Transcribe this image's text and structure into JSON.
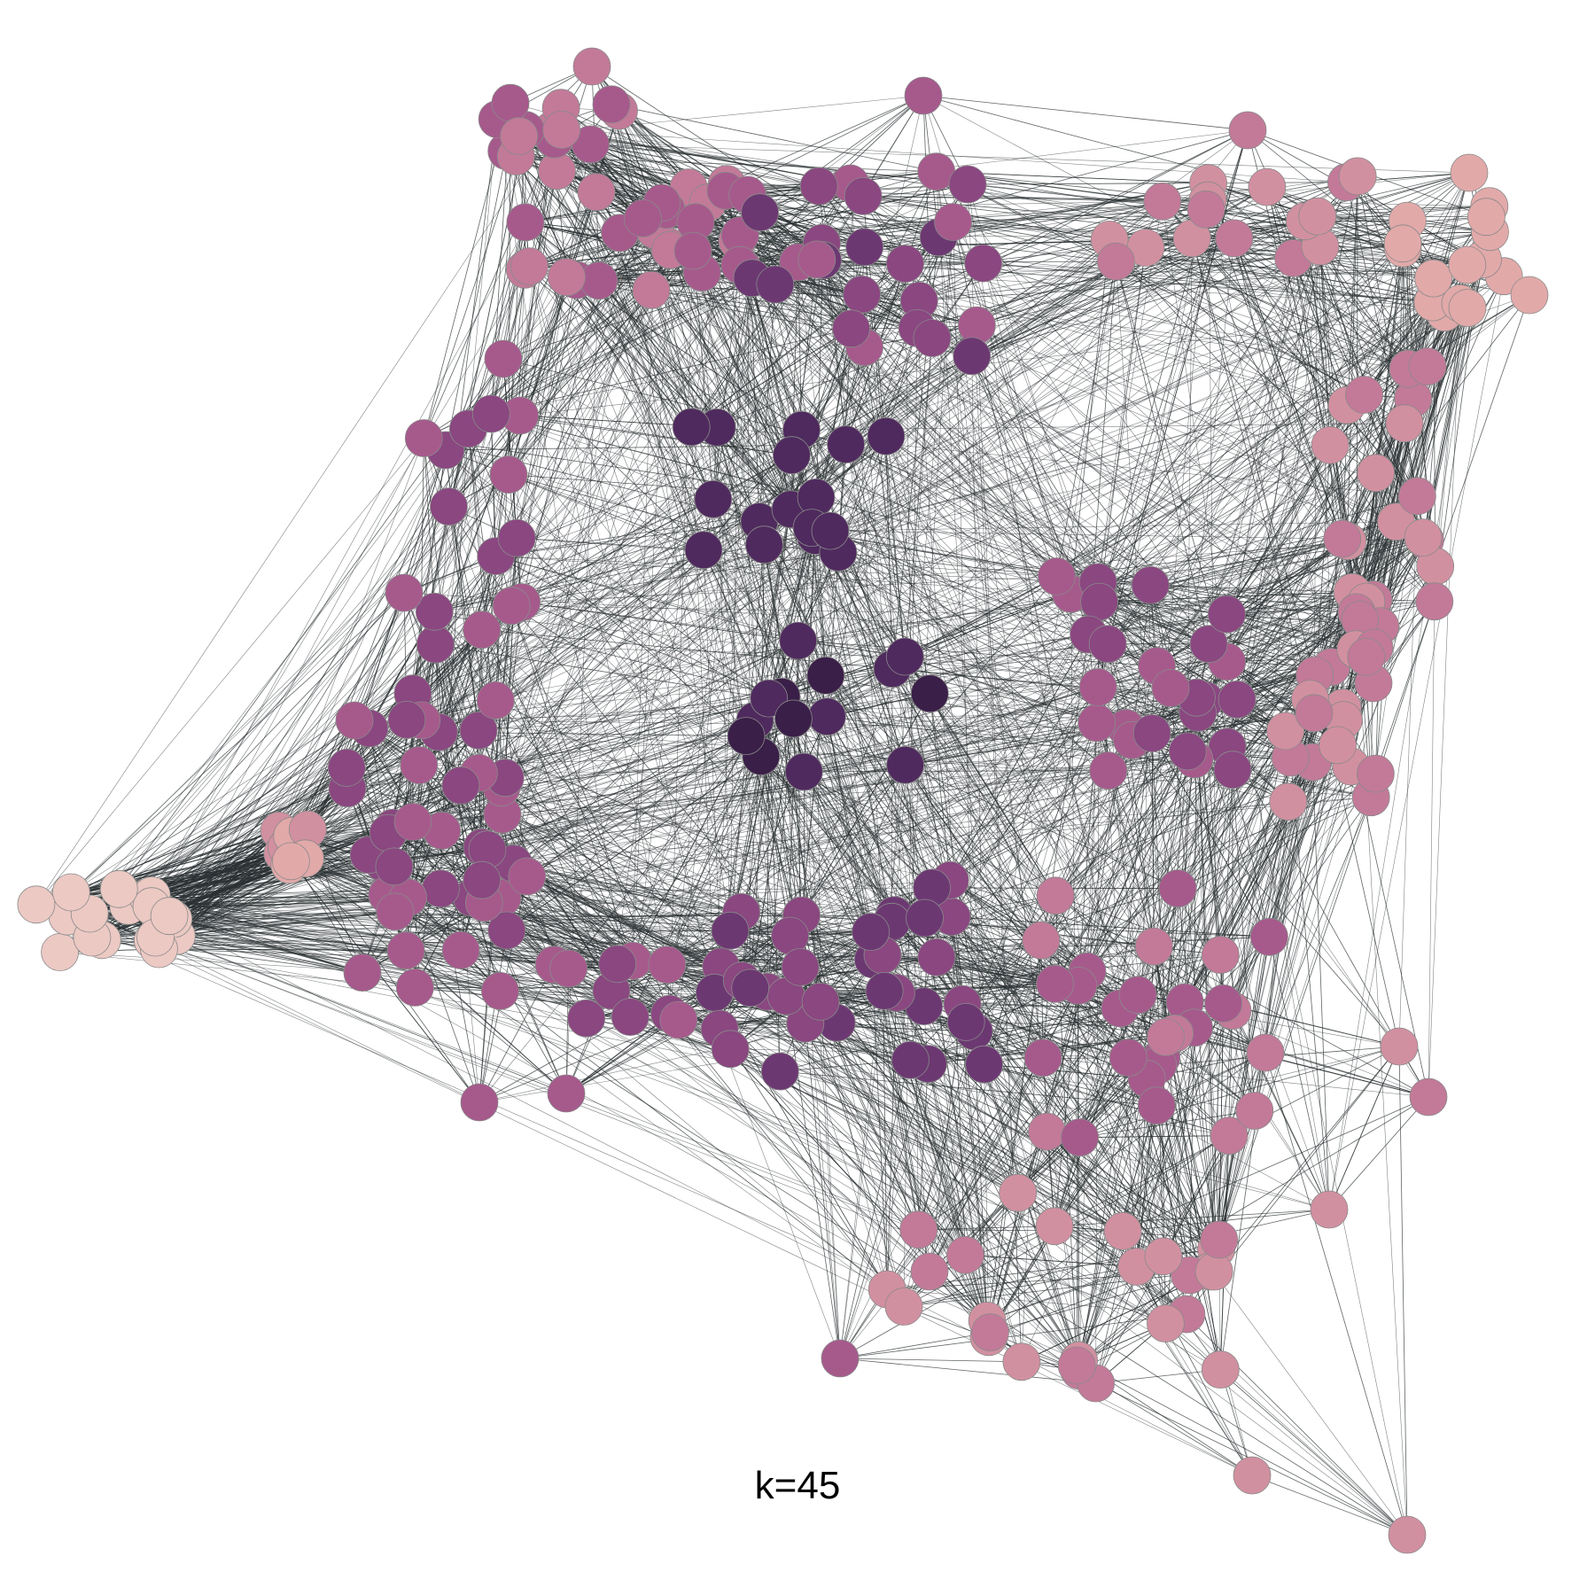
{
  "caption": "k=45",
  "colors": {
    "edge": "#2b3133",
    "node_stroke": "#8a8a8a",
    "node_palette": [
      "#ecc9c3",
      "#e2a9a9",
      "#d190a0",
      "#c27a98",
      "#a65a8c",
      "#8a4780",
      "#6c3872",
      "#4f2a5e",
      "#3a1f48"
    ]
  }
}
